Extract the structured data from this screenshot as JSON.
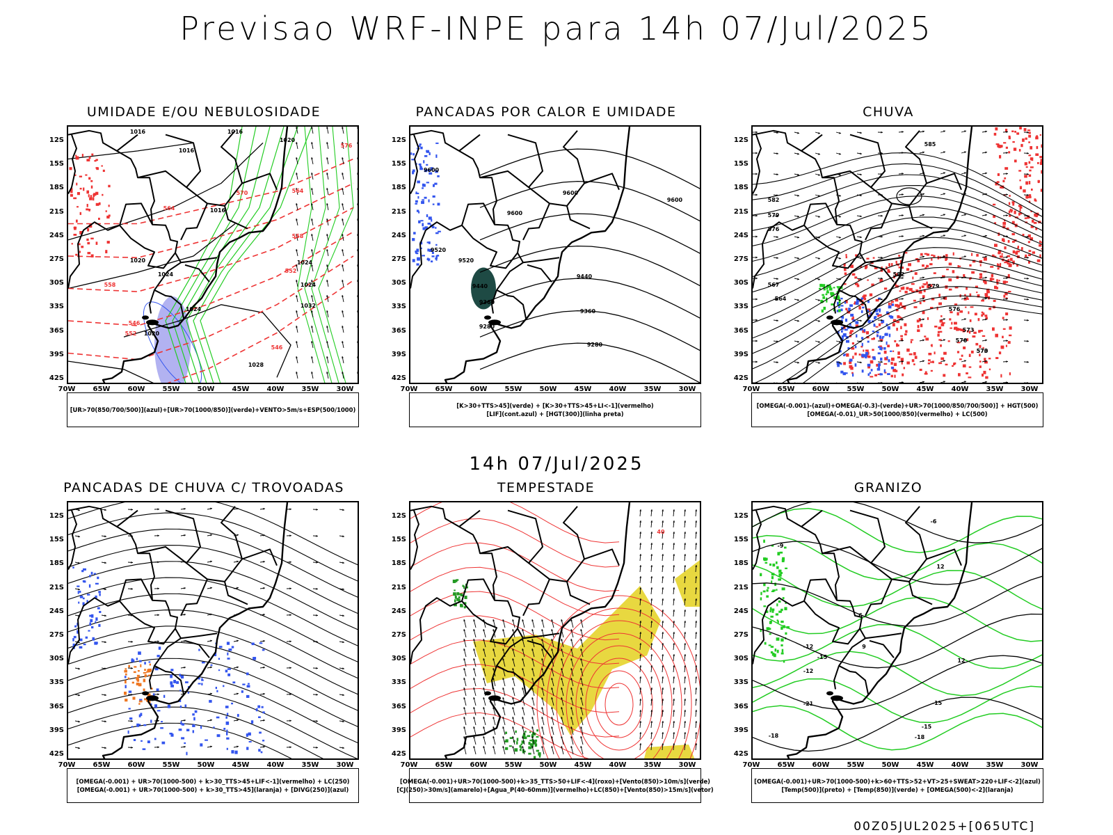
{
  "header": {
    "title": "Previsao WRF-INPE  para 14h 07/Jul/2025"
  },
  "middle": {
    "subtitle": "14h 07/Jul/2025"
  },
  "footer": {
    "run_label": "00Z05JUL2025+[065UTC]"
  },
  "axes": {
    "lat_labels": [
      "12S",
      "15S",
      "18S",
      "21S",
      "24S",
      "27S",
      "30S",
      "33S",
      "36S",
      "39S",
      "42S"
    ],
    "lon_labels": [
      "70W",
      "65W",
      "60W",
      "55W",
      "50W",
      "45W",
      "40W",
      "35W",
      "30W"
    ]
  },
  "colors": {
    "coast": "#000000",
    "contour": "#000000",
    "green": "#22cc22",
    "red": "#ee3333",
    "blue": "#3355ee",
    "lavender": "#9f9fee",
    "yellow": "#e8d840",
    "orange": "#ee7722",
    "darkgreen": "#1e4a44"
  },
  "panels": [
    {
      "id": "umidade",
      "title": "UMIDADE E/OU NEBULOSIDADE",
      "legend": [
        "[UR>70(850/700/500)](azul)+[UR>70(1000/850)](verde)+VENTO>5m/s+ESP(500/1000)"
      ],
      "contour_labels": [
        "1016",
        "1016",
        "1016",
        "1020",
        "1016",
        "1020",
        "1024",
        "1028",
        "1032",
        "1024",
        "1020",
        "1024",
        "1024"
      ],
      "red_labels": [
        "576",
        "570",
        "564",
        "558",
        "552",
        "546",
        "546",
        "552",
        "558",
        "564"
      ]
    },
    {
      "id": "pancadas-calor",
      "title": "PANCADAS POR CALOR E UMIDADE",
      "legend": [
        "[K>30+TTS>45](verde) + [K>30+TTS>45+LI<-1](vermelho)",
        "[LIF](cont.azul) + [HGT(300)](linha preta)"
      ],
      "contour_labels": [
        "9600",
        "9600",
        "9600",
        "9600",
        "9520",
        "9520",
        "9440",
        "9440",
        "9360",
        "9360",
        "9280",
        "9280"
      ]
    },
    {
      "id": "chuva",
      "title": "CHUVA",
      "legend": [
        "[OMEGA(-0.001)-(azul)+OMEGA(-0.3)-(verde)+UR>70(1000/850/700/500)] + HGT(500)",
        "[OMEGA(-0.01)_UR>50(1000/850)(vermelho) + LC(500)"
      ],
      "contour_labels": [
        "585",
        "582",
        "579",
        "576",
        "573",
        "570",
        "567",
        "564",
        "582",
        "579",
        "576",
        "573",
        "570"
      ]
    },
    {
      "id": "pancadas-trovoadas",
      "title": "PANCADAS DE CHUVA C/ TROVOADAS",
      "legend": [
        "[OMEGA(-0.001) + UR>70(1000-500) + k>30_TTS>45+LIF<-1](vermelho) + LC(250)",
        "[OMEGA(-0.001) + UR>70(1000-500) + k>30_TTS>45](laranja) + [DIVG(250)](azul)"
      ]
    },
    {
      "id": "tempestade",
      "title": "TEMPESTADE",
      "legend": [
        "[OMEGA(-0.001)+UR>70(1000-500)+k>35_TTS>50+LIF<-4](roxo)+[Vento(850)>10m/s](verde)",
        "[CJ(250)>30m/s](amarelo)+[Agua_P(40-60mm)](vermelho)+LC(850)+[Vento(850)>15m/s](vetor)"
      ],
      "contour_labels": [
        "40"
      ]
    },
    {
      "id": "granizo",
      "title": "GRANIZO",
      "legend": [
        "[OMEGA(-0.001)+UR>70(1000-500)+k>60+TTS>52+VT>25+SWEAT>220+LIF<-2](azul)",
        "[Temp(500)](preto) + [Temp(850)](verde) + [OMEGA(500)<-2](laranja)"
      ],
      "contour_labels": [
        "-6",
        "-9",
        "-12",
        "-15",
        "-12",
        "-15",
        "-18",
        "-21",
        "-18",
        "-15",
        "12",
        "12",
        "9",
        "6"
      ]
    }
  ]
}
